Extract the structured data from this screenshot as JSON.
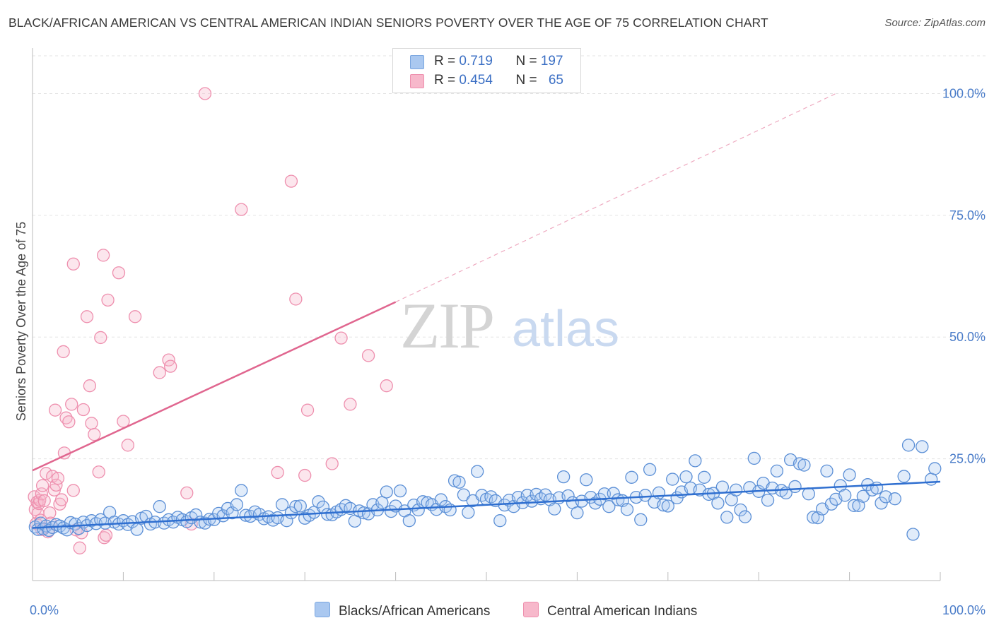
{
  "title": "BLACK/AFRICAN AMERICAN VS CENTRAL AMERICAN INDIAN SENIORS POVERTY OVER THE AGE OF 75 CORRELATION CHART",
  "source": "Source: ZipAtlas.com",
  "watermark": {
    "zip": "ZIP",
    "atlas": "atlas"
  },
  "legend": {
    "rows": [
      {
        "r_label": "R = ",
        "r_value": "0.719",
        "n_label": "N = ",
        "n_value": "197",
        "color": "#aac8f0"
      },
      {
        "r_label": "R = ",
        "r_value": "0.454",
        "n_label": "N = ",
        "n_value": "65",
        "color": "#f7b8cb"
      }
    ]
  },
  "bottom_legend": [
    {
      "label": "Blacks/African Americans",
      "color": "#aac8f0"
    },
    {
      "label": "Central American Indians",
      "color": "#f7b8cb"
    }
  ],
  "chart_data": {
    "type": "scatter",
    "ylabel": "Seniors Poverty Over the Age of 75",
    "xlim": [
      0,
      100
    ],
    "ylim": [
      0,
      100
    ],
    "x_tick_labels": [
      "0.0%",
      "100.0%"
    ],
    "y_ticks": [
      {
        "value": 25,
        "label": "25.0%"
      },
      {
        "value": 50,
        "label": "50.0%"
      },
      {
        "value": 75,
        "label": "75.0%"
      },
      {
        "value": 100,
        "label": "100.0%"
      }
    ],
    "grid": true,
    "colors": {
      "blue_stroke": "#5b8fd6",
      "blue_fill": "rgba(170,200,240,0.35)",
      "blue_line": "#2f6fd0",
      "pink_stroke": "#ee8fae",
      "pink_fill": "rgba(247,184,203,0.35)",
      "pink_line": "#e0668f"
    },
    "series": [
      {
        "name": "Blacks/African Americans",
        "trend": {
          "x": [
            0,
            100
          ],
          "y": [
            10.8,
            20.3
          ]
        },
        "points": [
          [
            0.3,
            11.0
          ],
          [
            0.6,
            10.5
          ],
          [
            0.9,
            11.8
          ],
          [
            1.2,
            10.6
          ],
          [
            1.5,
            11.2
          ],
          [
            1.8,
            10.3
          ],
          [
            2.2,
            10.9
          ],
          [
            2.6,
            11.5
          ],
          [
            3.0,
            11.2
          ],
          [
            3.4,
            10.8
          ],
          [
            3.8,
            10.4
          ],
          [
            4.2,
            11.9
          ],
          [
            4.7,
            11.6
          ],
          [
            5.1,
            10.7
          ],
          [
            5.6,
            12.0
          ],
          [
            6.0,
            11.3
          ],
          [
            6.5,
            12.3
          ],
          [
            7.0,
            11.7
          ],
          [
            7.5,
            12.5
          ],
          [
            8.0,
            11.8
          ],
          [
            8.5,
            14.0
          ],
          [
            9.0,
            12.0
          ],
          [
            9.5,
            11.6
          ],
          [
            10.0,
            12.3
          ],
          [
            10.5,
            11.5
          ],
          [
            11.0,
            12.1
          ],
          [
            11.5,
            10.5
          ],
          [
            12.0,
            12.8
          ],
          [
            12.5,
            13.2
          ],
          [
            13.0,
            11.6
          ],
          [
            13.5,
            12.0
          ],
          [
            14.0,
            15.2
          ],
          [
            14.5,
            11.8
          ],
          [
            15.0,
            12.5
          ],
          [
            15.5,
            12.0
          ],
          [
            16.0,
            13.0
          ],
          [
            16.5,
            12.5
          ],
          [
            17.0,
            12.1
          ],
          [
            17.5,
            12.9
          ],
          [
            18.0,
            13.5
          ],
          [
            18.5,
            12.0
          ],
          [
            19.0,
            11.8
          ],
          [
            19.5,
            12.6
          ],
          [
            20.0,
            12.5
          ],
          [
            20.5,
            13.8
          ],
          [
            21.0,
            13.3
          ],
          [
            21.5,
            14.8
          ],
          [
            22.0,
            13.9
          ],
          [
            22.5,
            15.6
          ],
          [
            23.0,
            18.5
          ],
          [
            23.5,
            13.4
          ],
          [
            24.0,
            13.2
          ],
          [
            24.5,
            14.1
          ],
          [
            25.0,
            13.6
          ],
          [
            25.5,
            12.7
          ],
          [
            26.0,
            13.1
          ],
          [
            26.5,
            12.4
          ],
          [
            27.0,
            12.9
          ],
          [
            27.5,
            15.6
          ],
          [
            28.0,
            12.3
          ],
          [
            28.5,
            13.9
          ],
          [
            29.0,
            15.2
          ],
          [
            29.5,
            15.3
          ],
          [
            30.0,
            12.8
          ],
          [
            30.5,
            13.4
          ],
          [
            31.0,
            14.0
          ],
          [
            31.5,
            16.2
          ],
          [
            32.0,
            15.1
          ],
          [
            32.5,
            13.6
          ],
          [
            33.0,
            13.5
          ],
          [
            33.5,
            14.1
          ],
          [
            34.0,
            14.6
          ],
          [
            34.5,
            15.4
          ],
          [
            35.0,
            14.8
          ],
          [
            35.5,
            12.2
          ],
          [
            36.0,
            14.3
          ],
          [
            36.5,
            13.9
          ],
          [
            37.0,
            13.7
          ],
          [
            37.5,
            15.6
          ],
          [
            38.0,
            14.5
          ],
          [
            38.5,
            16.0
          ],
          [
            39.0,
            18.2
          ],
          [
            39.5,
            14.2
          ],
          [
            40.0,
            15.3
          ],
          [
            40.5,
            18.4
          ],
          [
            41.0,
            14.3
          ],
          [
            41.5,
            12.3
          ],
          [
            42.0,
            15.5
          ],
          [
            42.5,
            14.5
          ],
          [
            43.0,
            16.2
          ],
          [
            43.5,
            16.0
          ],
          [
            44.0,
            15.6
          ],
          [
            44.5,
            14.6
          ],
          [
            45.0,
            16.6
          ],
          [
            45.5,
            15.2
          ],
          [
            46.0,
            14.5
          ],
          [
            46.5,
            20.5
          ],
          [
            47.0,
            20.2
          ],
          [
            47.5,
            17.6
          ],
          [
            48.0,
            14.0
          ],
          [
            48.5,
            16.4
          ],
          [
            49.0,
            22.4
          ],
          [
            49.5,
            17.5
          ],
          [
            50.0,
            16.7
          ],
          [
            50.5,
            17.2
          ],
          [
            51.0,
            16.4
          ],
          [
            51.5,
            12.3
          ],
          [
            52.0,
            15.5
          ],
          [
            52.5,
            16.5
          ],
          [
            53.0,
            15.2
          ],
          [
            53.5,
            17.1
          ],
          [
            54.0,
            16.0
          ],
          [
            54.5,
            17.5
          ],
          [
            55.0,
            16.3
          ],
          [
            55.5,
            17.7
          ],
          [
            56.0,
            16.8
          ],
          [
            56.5,
            17.6
          ],
          [
            57.0,
            16.6
          ],
          [
            57.5,
            14.7
          ],
          [
            58.0,
            17.0
          ],
          [
            58.5,
            21.3
          ],
          [
            59.0,
            17.4
          ],
          [
            59.5,
            16.0
          ],
          [
            60.0,
            13.9
          ],
          [
            60.5,
            16.3
          ],
          [
            61.0,
            20.7
          ],
          [
            61.5,
            17.1
          ],
          [
            62.0,
            15.9
          ],
          [
            62.5,
            16.7
          ],
          [
            63.0,
            17.8
          ],
          [
            63.5,
            15.2
          ],
          [
            64.0,
            17.9
          ],
          [
            64.5,
            16.6
          ],
          [
            65.0,
            16.4
          ],
          [
            65.5,
            14.6
          ],
          [
            66.0,
            21.2
          ],
          [
            66.5,
            17.1
          ],
          [
            67.0,
            12.5
          ],
          [
            67.5,
            17.5
          ],
          [
            68.0,
            22.8
          ],
          [
            68.5,
            16.1
          ],
          [
            69.0,
            18.0
          ],
          [
            69.5,
            15.5
          ],
          [
            70.0,
            15.3
          ],
          [
            70.5,
            20.8
          ],
          [
            71.0,
            17.0
          ],
          [
            71.5,
            18.2
          ],
          [
            72.0,
            21.3
          ],
          [
            72.5,
            19.0
          ],
          [
            73.0,
            24.6
          ],
          [
            73.5,
            18.6
          ],
          [
            74.0,
            21.2
          ],
          [
            74.5,
            17.7
          ],
          [
            75.0,
            17.9
          ],
          [
            75.5,
            15.9
          ],
          [
            76.0,
            19.2
          ],
          [
            76.5,
            13.0
          ],
          [
            77.0,
            16.6
          ],
          [
            77.5,
            18.6
          ],
          [
            78.0,
            14.5
          ],
          [
            78.5,
            13.1
          ],
          [
            79.0,
            19.1
          ],
          [
            79.5,
            25.1
          ],
          [
            80.0,
            18.3
          ],
          [
            80.5,
            20.0
          ],
          [
            81.0,
            16.5
          ],
          [
            81.5,
            19.0
          ],
          [
            82.0,
            22.5
          ],
          [
            82.5,
            18.5
          ],
          [
            83.0,
            18.0
          ],
          [
            83.5,
            24.8
          ],
          [
            84.0,
            19.3
          ],
          [
            84.5,
            24.0
          ],
          [
            85.0,
            23.7
          ],
          [
            85.5,
            17.8
          ],
          [
            86.0,
            13.0
          ],
          [
            86.5,
            12.9
          ],
          [
            87.0,
            14.7
          ],
          [
            87.5,
            22.5
          ],
          [
            88.0,
            15.7
          ],
          [
            88.5,
            16.7
          ],
          [
            89.0,
            19.5
          ],
          [
            89.5,
            17.5
          ],
          [
            90.0,
            21.7
          ],
          [
            90.5,
            15.4
          ],
          [
            91.0,
            15.4
          ],
          [
            91.5,
            17.3
          ],
          [
            92.0,
            19.7
          ],
          [
            92.5,
            18.6
          ],
          [
            93.0,
            19.0
          ],
          [
            93.5,
            15.9
          ],
          [
            94.0,
            17.2
          ],
          [
            95.0,
            16.8
          ],
          [
            96.0,
            21.4
          ],
          [
            96.5,
            27.8
          ],
          [
            97.0,
            9.5
          ],
          [
            98.0,
            27.5
          ],
          [
            99.0,
            20.8
          ],
          [
            99.4,
            23.0
          ]
        ]
      },
      {
        "name": "Central American Indians",
        "trend": {
          "x": [
            0,
            40
          ],
          "y": [
            22.6,
            57.2
          ]
        },
        "trend_extension": {
          "x": [
            40,
            88.5
          ],
          "y": [
            57.2,
            100
          ]
        },
        "points": [
          [
            0.2,
            17.2
          ],
          [
            0.3,
            14.6
          ],
          [
            0.4,
            11.7
          ],
          [
            0.5,
            16.1
          ],
          [
            0.6,
            13.8
          ],
          [
            0.7,
            15.8
          ],
          [
            0.8,
            16.5
          ],
          [
            0.9,
            12.4
          ],
          [
            1.0,
            17.8
          ],
          [
            1.1,
            19.5
          ],
          [
            1.3,
            16.4
          ],
          [
            1.5,
            22.0
          ],
          [
            1.7,
            10.0
          ],
          [
            1.9,
            13.9
          ],
          [
            2.0,
            11.8
          ],
          [
            2.2,
            21.4
          ],
          [
            2.4,
            18.6
          ],
          [
            2.6,
            19.6
          ],
          [
            2.8,
            21.0
          ],
          [
            3.0,
            15.7
          ],
          [
            3.2,
            16.6
          ],
          [
            3.4,
            47.0
          ],
          [
            3.5,
            26.2
          ],
          [
            3.7,
            33.4
          ],
          [
            4.0,
            32.6
          ],
          [
            4.3,
            36.2
          ],
          [
            4.5,
            18.5
          ],
          [
            4.8,
            10.4
          ],
          [
            5.2,
            6.7
          ],
          [
            5.4,
            9.8
          ],
          [
            5.6,
            35.1
          ],
          [
            6.0,
            54.2
          ],
          [
            6.3,
            40.0
          ],
          [
            6.5,
            32.3
          ],
          [
            6.8,
            30.0
          ],
          [
            7.3,
            22.3
          ],
          [
            7.5,
            49.9
          ],
          [
            7.8,
            66.8
          ],
          [
            7.9,
            8.8
          ],
          [
            8.1,
            9.3
          ],
          [
            8.3,
            57.6
          ],
          [
            9.5,
            63.2
          ],
          [
            10.0,
            32.7
          ],
          [
            10.5,
            27.8
          ],
          [
            11.3,
            54.2
          ],
          [
            14.0,
            42.7
          ],
          [
            15.0,
            45.3
          ],
          [
            15.2,
            44.0
          ],
          [
            17.0,
            18.0
          ],
          [
            17.5,
            11.6
          ],
          [
            19.0,
            100.0
          ],
          [
            23.0,
            76.2
          ],
          [
            27.0,
            22.2
          ],
          [
            28.5,
            82.0
          ],
          [
            29.0,
            57.8
          ],
          [
            30.0,
            21.6
          ],
          [
            30.3,
            35.0
          ],
          [
            33.0,
            24.0
          ],
          [
            34.0,
            49.8
          ],
          [
            35.0,
            36.2
          ],
          [
            37.0,
            46.2
          ],
          [
            39.0,
            40.0
          ],
          [
            4.5,
            65.0
          ],
          [
            2.5,
            35.0
          ],
          [
            1.0,
            10.5
          ]
        ]
      }
    ]
  }
}
